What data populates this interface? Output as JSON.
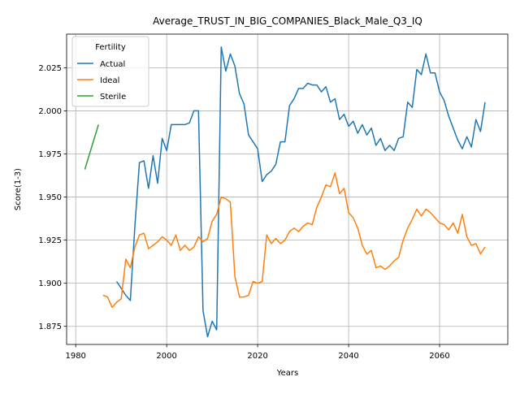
{
  "chart_data": {
    "type": "line",
    "title": "Average_TRUST_IN_BIG_COMPANIES_Black_Male_Q3_IQ",
    "xlabel": "Years",
    "ylabel": "Score(1-3)",
    "xlim": [
      1978,
      2075
    ],
    "ylim": [
      1.8645,
      2.0445
    ],
    "xticks": [
      1980,
      2000,
      2020,
      2040,
      2060
    ],
    "yticks": [
      1.875,
      1.9,
      1.925,
      1.95,
      1.975,
      2.0,
      2.025
    ],
    "ytick_labels": [
      "1.875",
      "1.900",
      "1.925",
      "1.950",
      "1.975",
      "2.000",
      "2.025"
    ],
    "grid": true,
    "legend": {
      "title": "Fertility",
      "position": "upper-left"
    },
    "series": [
      {
        "name": "Actual",
        "color": "#1f77b4",
        "x": [
          1989,
          1990,
          1991,
          1992,
          1993,
          1994,
          1995,
          1996,
          1997,
          1998,
          1999,
          2000,
          2001,
          2002,
          2003,
          2004,
          2005,
          2006,
          2007,
          2008,
          2009,
          2010,
          2011,
          2012,
          2013,
          2014,
          2015,
          2016,
          2017,
          2018,
          2019,
          2020,
          2021,
          2022,
          2023,
          2024,
          2025,
          2026,
          2027,
          2028,
          2029,
          2030,
          2031,
          2032,
          2033,
          2034,
          2035,
          2036,
          2037,
          2038,
          2039,
          2040,
          2041,
          2042,
          2043,
          2044,
          2045,
          2046,
          2047,
          2048,
          2049,
          2050,
          2051,
          2052,
          2053,
          2054,
          2055,
          2056,
          2057,
          2058,
          2059,
          2060,
          2061,
          2062,
          2063,
          2064,
          2065,
          2066,
          2067,
          2068,
          2069,
          2070
        ],
        "y": [
          1.901,
          1.897,
          1.893,
          1.89,
          1.933,
          1.97,
          1.971,
          1.955,
          1.974,
          1.958,
          1.984,
          1.977,
          1.992,
          1.992,
          1.992,
          1.992,
          1.993,
          2.0,
          2.0,
          1.884,
          1.869,
          1.878,
          1.873,
          2.037,
          2.023,
          2.033,
          2.026,
          2.01,
          2.004,
          1.986,
          1.982,
          1.978,
          1.959,
          1.963,
          1.965,
          1.969,
          1.982,
          1.982,
          2.003,
          2.007,
          2.013,
          2.013,
          2.016,
          2.015,
          2.015,
          2.011,
          2.014,
          2.005,
          2.007,
          1.995,
          1.998,
          1.991,
          1.994,
          1.987,
          1.992,
          1.986,
          1.99,
          1.98,
          1.984,
          1.977,
          1.98,
          1.977,
          1.984,
          1.985,
          2.005,
          2.002,
          2.024,
          2.021,
          2.033,
          2.022,
          2.022,
          2.011,
          2.006,
          1.997,
          1.99,
          1.983,
          1.978,
          1.985,
          1.979,
          1.995,
          1.988,
          2.005
        ]
      },
      {
        "name": "Ideal",
        "color": "#ff7f0e",
        "x": [
          1986,
          1987,
          1988,
          1989,
          1990,
          1991,
          1992,
          1993,
          1994,
          1995,
          1996,
          1997,
          1998,
          1999,
          2000,
          2001,
          2002,
          2003,
          2004,
          2005,
          2006,
          2007,
          2008,
          2009,
          2010,
          2011,
          2012,
          2013,
          2014,
          2015,
          2016,
          2017,
          2018,
          2019,
          2020,
          2021,
          2022,
          2023,
          2024,
          2025,
          2026,
          2027,
          2028,
          2029,
          2030,
          2031,
          2032,
          2033,
          2034,
          2035,
          2036,
          2037,
          2038,
          2039,
          2040,
          2041,
          2042,
          2043,
          2044,
          2045,
          2046,
          2047,
          2048,
          2049,
          2050,
          2051,
          2052,
          2053,
          2054,
          2055,
          2056,
          2057,
          2058,
          2059,
          2060,
          2061,
          2062,
          2063,
          2064,
          2065,
          2066,
          2067,
          2068,
          2069,
          2070
        ],
        "y": [
          1.893,
          1.892,
          1.886,
          1.889,
          1.891,
          1.914,
          1.909,
          1.921,
          1.928,
          1.929,
          1.92,
          1.922,
          1.924,
          1.927,
          1.925,
          1.922,
          1.928,
          1.919,
          1.922,
          1.919,
          1.921,
          1.927,
          1.924,
          1.926,
          1.936,
          1.94,
          1.95,
          1.949,
          1.947,
          1.904,
          1.892,
          1.892,
          1.893,
          1.901,
          1.9,
          1.901,
          1.928,
          1.923,
          1.926,
          1.923,
          1.925,
          1.93,
          1.932,
          1.93,
          1.933,
          1.935,
          1.934,
          1.944,
          1.95,
          1.957,
          1.956,
          1.964,
          1.952,
          1.955,
          1.941,
          1.938,
          1.932,
          1.922,
          1.917,
          1.919,
          1.909,
          1.91,
          1.908,
          1.91,
          1.913,
          1.915,
          1.925,
          1.932,
          1.937,
          1.943,
          1.939,
          1.943,
          1.941,
          1.938,
          1.935,
          1.934,
          1.931,
          1.935,
          1.929,
          1.94,
          1.927,
          1.922,
          1.923,
          1.917,
          1.921
        ]
      },
      {
        "name": "Sterile",
        "color": "#2ca02c",
        "x": [
          1982,
          1985
        ],
        "y": [
          1.966,
          1.992
        ]
      }
    ]
  }
}
